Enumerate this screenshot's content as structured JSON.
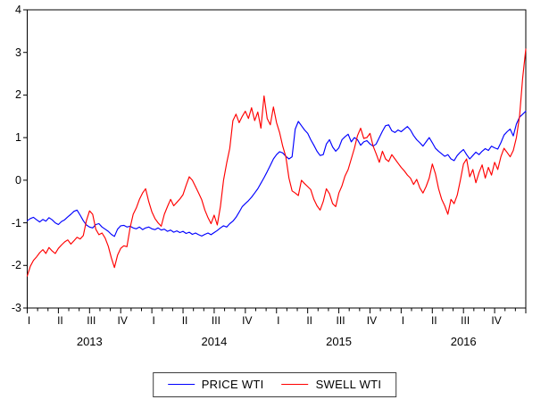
{
  "chart_data": {
    "type": "line",
    "title": "",
    "x_axis": {
      "label": "",
      "years": [
        "2013",
        "2014",
        "2015",
        "2016"
      ],
      "quarter_labels": [
        "I",
        "II",
        "III",
        "IV"
      ],
      "quarters_total": 16,
      "minor_tick_unit": "month",
      "range_note": "daily observations, 2013Q1 - 2016Q4"
    },
    "y_axis": {
      "min": -3,
      "max": 4,
      "ticks": [
        4,
        3,
        2,
        1,
        0,
        -1,
        -2,
        -3
      ]
    },
    "grid": false,
    "legend_position": "bottom-center",
    "series": [
      {
        "name": "PRICE WTI",
        "color": "#0000ff",
        "values": [
          -0.95,
          -0.9,
          -0.87,
          -0.93,
          -0.98,
          -0.92,
          -0.96,
          -0.88,
          -0.93,
          -1.0,
          -1.04,
          -0.97,
          -0.93,
          -0.86,
          -0.8,
          -0.73,
          -0.7,
          -0.82,
          -0.95,
          -1.05,
          -1.1,
          -1.12,
          -1.04,
          -1.02,
          -1.1,
          -1.15,
          -1.2,
          -1.27,
          -1.32,
          -1.15,
          -1.07,
          -1.06,
          -1.1,
          -1.08,
          -1.12,
          -1.14,
          -1.1,
          -1.16,
          -1.12,
          -1.1,
          -1.14,
          -1.16,
          -1.12,
          -1.17,
          -1.15,
          -1.2,
          -1.17,
          -1.22,
          -1.19,
          -1.23,
          -1.2,
          -1.25,
          -1.22,
          -1.27,
          -1.24,
          -1.28,
          -1.31,
          -1.27,
          -1.24,
          -1.28,
          -1.23,
          -1.18,
          -1.12,
          -1.07,
          -1.1,
          -1.02,
          -0.96,
          -0.87,
          -0.75,
          -0.62,
          -0.55,
          -0.48,
          -0.4,
          -0.3,
          -0.2,
          -0.07,
          0.06,
          0.2,
          0.35,
          0.5,
          0.6,
          0.67,
          0.64,
          0.56,
          0.5,
          0.55,
          1.2,
          1.38,
          1.28,
          1.18,
          1.1,
          0.95,
          0.82,
          0.68,
          0.58,
          0.6,
          0.85,
          0.95,
          0.78,
          0.68,
          0.76,
          0.95,
          1.02,
          1.08,
          0.9,
          1.0,
          0.95,
          0.82,
          0.9,
          0.93,
          0.85,
          0.8,
          0.85,
          1.0,
          1.15,
          1.28,
          1.3,
          1.16,
          1.12,
          1.18,
          1.14,
          1.2,
          1.26,
          1.18,
          1.05,
          0.95,
          0.88,
          0.8,
          0.9,
          1.0,
          0.88,
          0.75,
          0.68,
          0.62,
          0.56,
          0.6,
          0.5,
          0.46,
          0.58,
          0.66,
          0.72,
          0.6,
          0.5,
          0.58,
          0.66,
          0.6,
          0.68,
          0.74,
          0.7,
          0.8,
          0.76,
          0.73,
          0.88,
          1.06,
          1.14,
          1.2,
          1.04,
          1.32,
          1.48,
          1.55,
          1.62
        ]
      },
      {
        "name": "SWELL WTI",
        "color": "#ff0000",
        "values": [
          -2.25,
          -2.02,
          -1.88,
          -1.8,
          -1.7,
          -1.63,
          -1.72,
          -1.58,
          -1.66,
          -1.72,
          -1.6,
          -1.52,
          -1.45,
          -1.4,
          -1.5,
          -1.42,
          -1.34,
          -1.38,
          -1.3,
          -0.95,
          -0.72,
          -0.8,
          -1.15,
          -1.28,
          -1.24,
          -1.36,
          -1.55,
          -1.82,
          -2.05,
          -1.76,
          -1.6,
          -1.54,
          -1.56,
          -1.12,
          -0.8,
          -0.65,
          -0.45,
          -0.3,
          -0.2,
          -0.5,
          -0.74,
          -0.9,
          -1.0,
          -1.08,
          -0.8,
          -0.62,
          -0.45,
          -0.6,
          -0.52,
          -0.44,
          -0.34,
          -0.12,
          0.08,
          0.0,
          -0.15,
          -0.3,
          -0.46,
          -0.7,
          -0.88,
          -1.02,
          -0.82,
          -1.05,
          -0.62,
          0.0,
          0.4,
          0.75,
          1.4,
          1.55,
          1.35,
          1.5,
          1.62,
          1.45,
          1.7,
          1.4,
          1.6,
          1.22,
          1.98,
          1.45,
          1.3,
          1.72,
          1.35,
          1.12,
          0.8,
          0.55,
          0.05,
          -0.25,
          -0.3,
          -0.36,
          0.0,
          -0.08,
          -0.15,
          -0.22,
          -0.45,
          -0.6,
          -0.7,
          -0.5,
          -0.2,
          -0.32,
          -0.55,
          -0.62,
          -0.3,
          -0.13,
          0.1,
          0.25,
          0.5,
          0.75,
          1.05,
          1.22,
          0.98,
          1.0,
          1.1,
          0.8,
          0.62,
          0.42,
          0.68,
          0.5,
          0.44,
          0.6,
          0.5,
          0.4,
          0.3,
          0.22,
          0.12,
          0.05,
          -0.1,
          0.02,
          -0.18,
          -0.3,
          -0.15,
          0.05,
          0.38,
          0.15,
          -0.2,
          -0.45,
          -0.6,
          -0.8,
          -0.45,
          -0.55,
          -0.35,
          0.0,
          0.38,
          0.5,
          0.08,
          0.25,
          -0.06,
          0.18,
          0.36,
          0.05,
          0.3,
          0.12,
          0.42,
          0.25,
          0.55,
          0.75,
          0.65,
          0.55,
          0.7,
          1.0,
          1.5,
          2.4,
          3.08
        ]
      }
    ]
  }
}
